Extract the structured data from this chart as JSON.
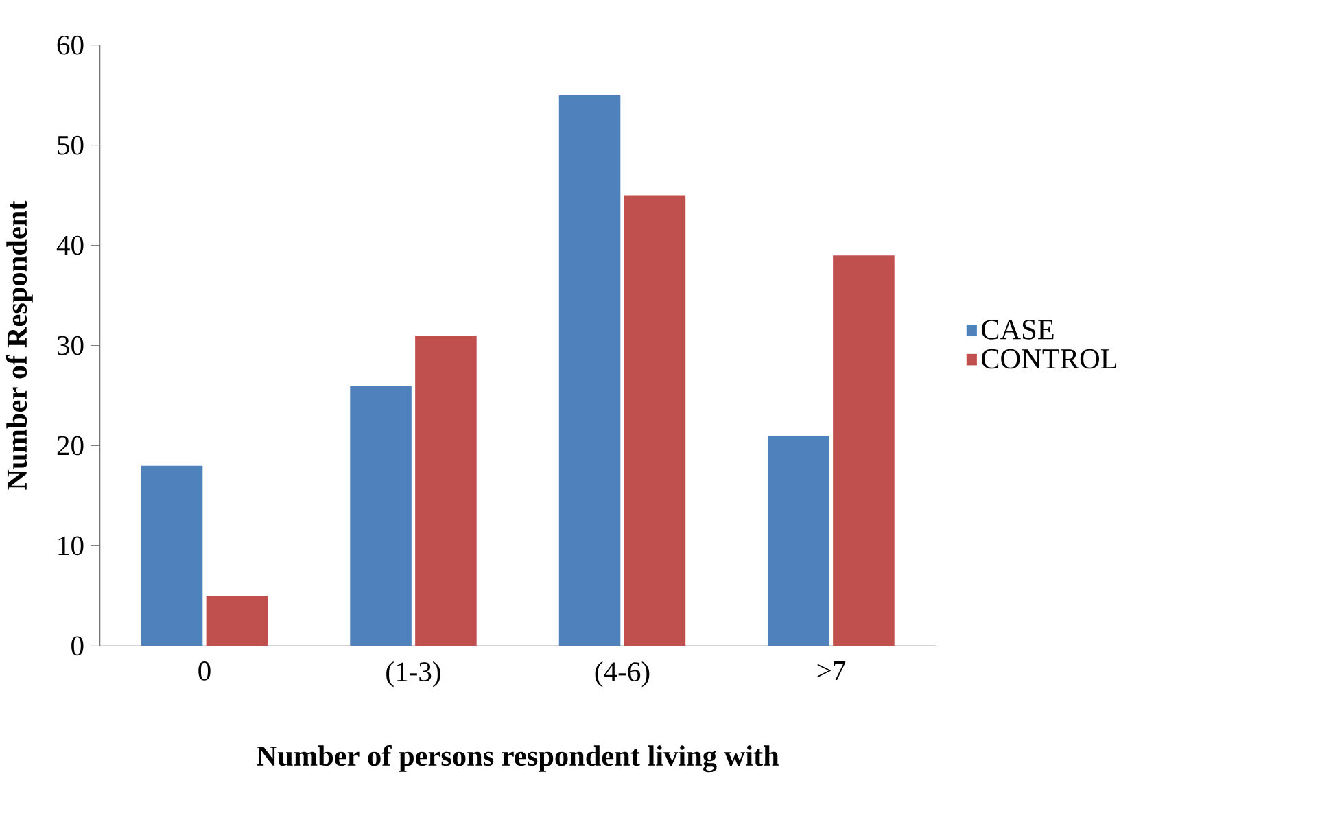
{
  "chart_data": {
    "type": "bar",
    "xlabel": "Number of persons respondent living with",
    "ylabel": "Number of Respondent",
    "categories": [
      "0",
      "(1-3)",
      "(4-6)",
      ">7"
    ],
    "series": [
      {
        "name": "CASE",
        "color": "#4f81bd",
        "values": [
          18,
          26,
          55,
          21
        ]
      },
      {
        "name": "CONTROL",
        "color": "#c0504d",
        "values": [
          5,
          31,
          45,
          39
        ]
      }
    ],
    "ylim": [
      0,
      60
    ],
    "yticks": [
      0,
      10,
      20,
      30,
      40,
      50,
      60
    ],
    "grid": false,
    "legend": "right"
  }
}
